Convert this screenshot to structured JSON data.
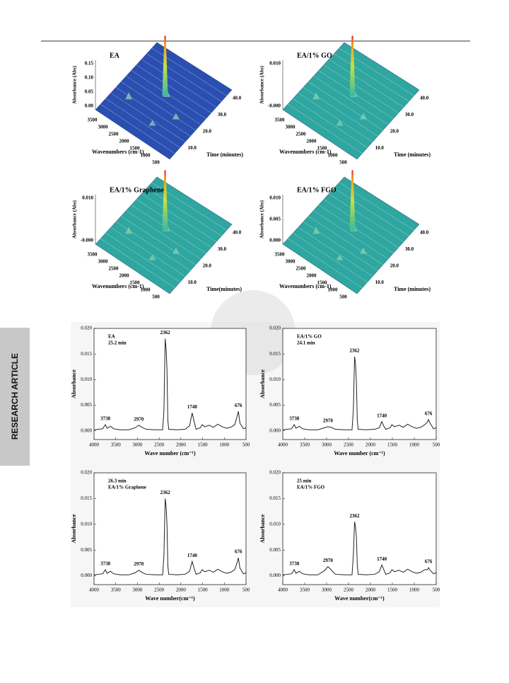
{
  "side_tab": "RESEARCH ARTICLE",
  "surface_plots": [
    {
      "title": "EA",
      "color": "#2a4fb0",
      "z_label": "Absorbance (Abs)",
      "z_ticks": [
        "0.15",
        "0.10",
        "0.05",
        "0.00"
      ],
      "x_label": "Wavenumbers (cm-1)",
      "x_ticks": [
        3500,
        3000,
        2500,
        2000,
        1500,
        1000,
        500
      ],
      "t_label": "Time (minutes)",
      "t_ticks": [
        "10.0",
        "20.0",
        "30.0",
        "40.0"
      ]
    },
    {
      "title": "EA/1% GO",
      "color": "#2fa6a0",
      "z_label": "Absorbance (Abs)",
      "z_ticks": [
        "0.010",
        "-0.000"
      ],
      "x_label": "Wavenumbers (cm-1)",
      "x_ticks": [
        3500,
        3000,
        2500,
        2000,
        1500,
        1000,
        500
      ],
      "t_label": "Time (minutes)",
      "t_ticks": [
        "10.0",
        "20.0",
        "30.0",
        "40.0"
      ]
    },
    {
      "title": "EA/1% Graphene",
      "color": "#2fa6a0",
      "z_label": "Absorbance (Abs)",
      "z_ticks": [
        "0.010",
        "-0.000"
      ],
      "x_label": "Wavenumbers (cm-1)",
      "x_ticks": [
        3500,
        3000,
        2500,
        2000,
        1500,
        1000,
        500
      ],
      "t_label": "Time(minutes)",
      "t_ticks": [
        "10.0",
        "20.0",
        "30.0",
        "40.0"
      ]
    },
    {
      "title": "EA/1% FGO",
      "color": "#2fa6a0",
      "z_label": "Absorbance (Abs)",
      "z_ticks": [
        "0.010",
        "0.005",
        "0.000"
      ],
      "x_label": "Wavenumbers (cm-1)",
      "x_ticks": [
        3500,
        3000,
        2500,
        2000,
        1500,
        1000,
        500
      ],
      "t_label": "Time (minutes)",
      "t_ticks": [
        "10.0",
        "20.0",
        "30.0",
        "40.0"
      ]
    }
  ],
  "chart_data": [
    {
      "type": "line",
      "label_lines": [
        "EA",
        "25.2 min"
      ],
      "xlabel": "Wave number (cm⁻¹)",
      "ylabel": "Absorbance",
      "color": "#222222",
      "xlim": [
        4000,
        500
      ],
      "ylim": [
        -0.0017,
        0.02
      ],
      "xticks": [
        4000,
        3500,
        3000,
        2500,
        2000,
        1500,
        1000,
        500
      ],
      "yticks": [
        {
          "value": 0,
          "label": "0.000"
        },
        {
          "value": 0.005,
          "label": "0.005"
        },
        {
          "value": 0.01,
          "label": "0.010"
        },
        {
          "value": 0.015,
          "label": "0.015"
        },
        {
          "value": 0.02,
          "label": "0.020"
        }
      ],
      "peak_labels": [
        3738,
        2970,
        2362,
        1740,
        676
      ],
      "x": [
        4000,
        3900,
        3800,
        3738,
        3700,
        3620,
        3550,
        3400,
        3200,
        3050,
        2970,
        2900,
        2800,
        2600,
        2420,
        2390,
        2362,
        2340,
        2320,
        2300,
        2280,
        2100,
        1900,
        1800,
        1740,
        1700,
        1650,
        1550,
        1510,
        1450,
        1350,
        1250,
        1150,
        1050,
        950,
        850,
        760,
        700,
        676,
        640,
        560,
        500
      ],
      "values": [
        0.0002,
        0.0003,
        0.0004,
        0.0012,
        0.0005,
        0.0009,
        0.0004,
        0.0002,
        0.0002,
        0.0006,
        0.0011,
        0.0007,
        0.0003,
        0.0002,
        0.0002,
        0.004,
        0.018,
        0.016,
        0.012,
        0.002,
        0.0003,
        0.0002,
        0.0003,
        0.001,
        0.0035,
        0.002,
        0.0003,
        0.0006,
        0.0012,
        0.0008,
        0.0011,
        0.0007,
        0.0013,
        0.0008,
        0.0005,
        0.0007,
        0.0012,
        0.003,
        0.0038,
        0.0015,
        0.0004,
        0.0006
      ]
    },
    {
      "type": "line",
      "label_lines": [
        "EA/1% GO",
        "24.1 min"
      ],
      "xlabel": "Wave number (cm⁻¹)",
      "ylabel": "Absorbance",
      "color": "#222222",
      "xlim": [
        4000,
        500
      ],
      "ylim": [
        -0.0017,
        0.02
      ],
      "xticks": [
        4000,
        3500,
        3000,
        2500,
        2000,
        1500,
        1000,
        500
      ],
      "yticks": [
        {
          "value": 0,
          "label": "0.000"
        },
        {
          "value": 0.005,
          "label": "0.005"
        },
        {
          "value": 0.01,
          "label": "0.010"
        },
        {
          "value": 0.015,
          "label": "0.015"
        },
        {
          "value": 0.02,
          "label": "0.020"
        }
      ],
      "peak_labels": [
        3738,
        2970,
        2362,
        1740,
        676
      ],
      "x": [
        4000,
        3900,
        3800,
        3738,
        3700,
        3620,
        3550,
        3400,
        3200,
        3050,
        2970,
        2900,
        2800,
        2600,
        2420,
        2390,
        2362,
        2340,
        2320,
        2300,
        2280,
        2100,
        1900,
        1800,
        1740,
        1700,
        1650,
        1550,
        1510,
        1450,
        1350,
        1250,
        1150,
        1050,
        950,
        850,
        760,
        700,
        676,
        640,
        560,
        500
      ],
      "values": [
        0.0002,
        0.0003,
        0.0004,
        0.0012,
        0.0005,
        0.0009,
        0.0004,
        0.0002,
        0.0002,
        0.0006,
        0.0008,
        0.0007,
        0.0003,
        0.0002,
        0.0002,
        0.004,
        0.0145,
        0.013,
        0.0095,
        0.002,
        0.0003,
        0.0002,
        0.0003,
        0.0006,
        0.0018,
        0.001,
        0.0003,
        0.0006,
        0.0012,
        0.0008,
        0.0011,
        0.0007,
        0.0013,
        0.0008,
        0.0005,
        0.0007,
        0.0012,
        0.0017,
        0.0022,
        0.0015,
        0.0004,
        0.0006
      ]
    },
    {
      "type": "line",
      "label_lines": [
        "26.3 min",
        "EA/1% Graphene"
      ],
      "xlabel": "Wave number(cm⁻¹)",
      "ylabel": "Absorbance",
      "color": "#222222",
      "xlim": [
        4000,
        500
      ],
      "ylim": [
        -0.0017,
        0.02
      ],
      "xticks": [
        4000,
        3500,
        3000,
        2500,
        2000,
        1500,
        1000,
        500
      ],
      "yticks": [
        {
          "value": 0,
          "label": "0.000"
        },
        {
          "value": 0.005,
          "label": "0.005"
        },
        {
          "value": 0.01,
          "label": "0.010"
        },
        {
          "value": 0.015,
          "label": "0.015"
        },
        {
          "value": 0.02,
          "label": "0.020"
        }
      ],
      "peak_labels": [
        3738,
        2970,
        2362,
        1740,
        676
      ],
      "x": [
        4000,
        3900,
        3800,
        3738,
        3700,
        3620,
        3550,
        3400,
        3200,
        3050,
        2970,
        2900,
        2800,
        2600,
        2420,
        2390,
        2362,
        2340,
        2320,
        2300,
        2280,
        2100,
        1900,
        1800,
        1740,
        1700,
        1650,
        1550,
        1510,
        1450,
        1350,
        1250,
        1150,
        1050,
        950,
        850,
        760,
        700,
        676,
        640,
        560,
        500
      ],
      "values": [
        0.0002,
        0.0003,
        0.0004,
        0.0012,
        0.0005,
        0.0009,
        0.0004,
        0.0002,
        0.0002,
        0.0006,
        0.0011,
        0.0007,
        0.0003,
        0.0002,
        0.0002,
        0.004,
        0.015,
        0.0135,
        0.01,
        0.002,
        0.0003,
        0.0002,
        0.0003,
        0.0009,
        0.0028,
        0.0016,
        0.0003,
        0.0006,
        0.0012,
        0.0008,
        0.0011,
        0.0007,
        0.0013,
        0.0008,
        0.0005,
        0.0007,
        0.0012,
        0.0027,
        0.0035,
        0.0015,
        0.0004,
        0.0006
      ]
    },
    {
      "type": "line",
      "label_lines": [
        "25 min",
        "EA/1% FGO"
      ],
      "xlabel": "Wave number(cm⁻¹)",
      "ylabel": "Absorbance",
      "color": "#222222",
      "xlim": [
        4000,
        500
      ],
      "ylim": [
        -0.0017,
        0.02
      ],
      "xticks": [
        4000,
        3500,
        3000,
        2500,
        2000,
        1500,
        1000,
        500
      ],
      "yticks": [
        {
          "value": 0,
          "label": "0.000"
        },
        {
          "value": 0.005,
          "label": "0.005"
        },
        {
          "value": 0.01,
          "label": "0.010"
        },
        {
          "value": 0.015,
          "label": "0.015"
        },
        {
          "value": 0.02,
          "label": "0.020"
        }
      ],
      "peak_labels": [
        3738,
        2970,
        2362,
        1740,
        676
      ],
      "x": [
        4000,
        3900,
        3800,
        3738,
        3700,
        3620,
        3550,
        3400,
        3200,
        3050,
        2970,
        2900,
        2800,
        2600,
        2420,
        2390,
        2362,
        2340,
        2320,
        2300,
        2280,
        2100,
        1900,
        1800,
        1740,
        1700,
        1650,
        1550,
        1510,
        1450,
        1350,
        1250,
        1150,
        1050,
        950,
        850,
        760,
        700,
        676,
        640,
        560,
        500
      ],
      "values": [
        0.0002,
        0.0003,
        0.0004,
        0.0012,
        0.0005,
        0.0009,
        0.0004,
        0.0002,
        0.0002,
        0.001,
        0.0018,
        0.0012,
        0.0003,
        0.0002,
        0.0002,
        0.004,
        0.0105,
        0.0095,
        0.0075,
        0.002,
        0.0003,
        0.0002,
        0.0003,
        0.0008,
        0.0021,
        0.0013,
        0.0003,
        0.0006,
        0.0012,
        0.0008,
        0.0011,
        0.0007,
        0.0013,
        0.0008,
        0.0005,
        0.0007,
        0.0012,
        0.0012,
        0.0016,
        0.0011,
        0.0004,
        0.0006
      ]
    }
  ]
}
